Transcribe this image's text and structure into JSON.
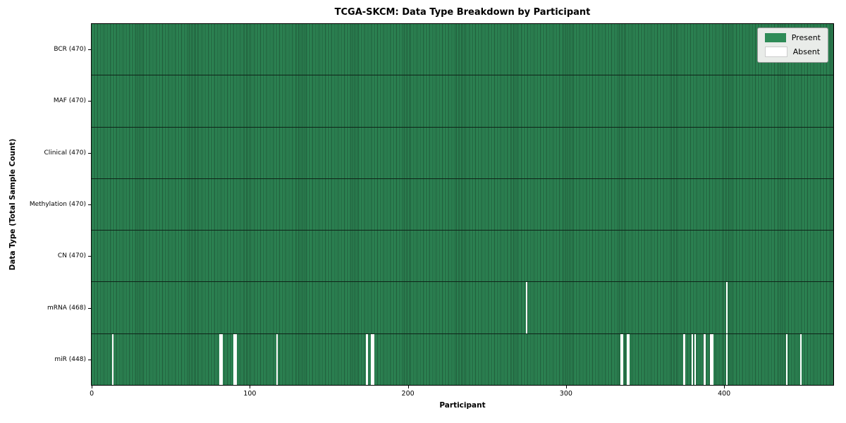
{
  "chart_data": {
    "type": "heatmap",
    "title": "TCGA-SKCM: Data Type Breakdown by Participant",
    "xlabel": "Participant",
    "ylabel": "Data Type (Total Sample Count)",
    "n_participants": 470,
    "x_ticks": [
      0,
      100,
      200,
      300,
      400
    ],
    "grid": false,
    "legend_entries": [
      "Present",
      "Absent"
    ],
    "legend_position": "upper right",
    "rows": [
      {
        "label": "BCR (470)",
        "data_type": "BCR",
        "total": 470,
        "absent_participants": []
      },
      {
        "label": "MAF (470)",
        "data_type": "MAF",
        "total": 470,
        "absent_participants": []
      },
      {
        "label": "Clinical (470)",
        "data_type": "Clinical",
        "total": 470,
        "absent_participants": []
      },
      {
        "label": "Methylation (470)",
        "data_type": "Methylation",
        "total": 470,
        "absent_participants": []
      },
      {
        "label": "CN (470)",
        "data_type": "CN",
        "total": 470,
        "absent_participants": []
      },
      {
        "label": "mRNA (468)",
        "data_type": "mRNA",
        "total": 468,
        "absent_participants": [
          275,
          402
        ]
      },
      {
        "label": "miR (448)",
        "data_type": "miR",
        "total": 448,
        "absent_participants": [
          13,
          81,
          82,
          90,
          91,
          117,
          174,
          177,
          178,
          335,
          336,
          339,
          340,
          375,
          380,
          382,
          388,
          392,
          393,
          402,
          440,
          449
        ]
      }
    ],
    "colors": {
      "present": "#2e8b57",
      "present_dark": "#1e5637",
      "absent": "#ffffff",
      "row_border": "#0e2418",
      "legend_bg": "#e9ece9",
      "legend_border": "#9a9a9a"
    }
  }
}
